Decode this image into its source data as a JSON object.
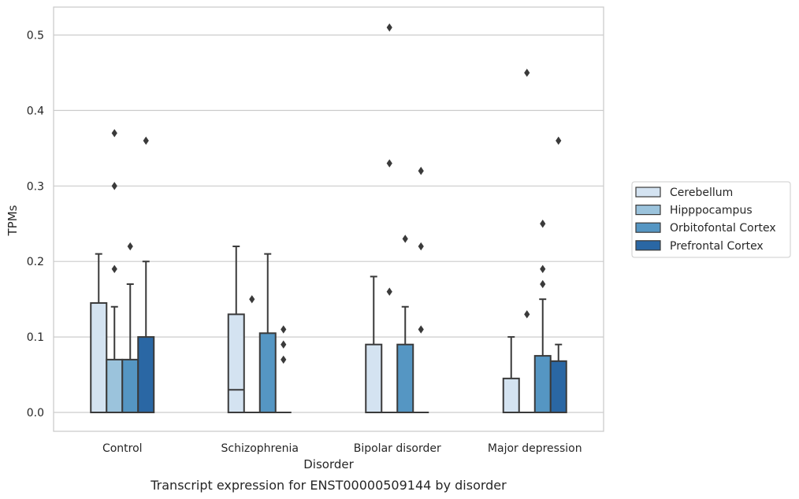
{
  "chart_data": {
    "type": "boxplot",
    "title": "",
    "caption": "Transcript expression for ENST00000509144 by disorder",
    "xlabel": "Disorder",
    "ylabel": "TPMs",
    "ylim": [
      -0.025,
      0.537
    ],
    "yticks": [
      "0.0",
      "0.1",
      "0.2",
      "0.3",
      "0.4",
      "0.5"
    ],
    "grid": true,
    "legend_placement": "right-center",
    "categories": [
      "Control",
      "Schizophrenia",
      "Bipolar disorder",
      "Major depression"
    ],
    "series": [
      {
        "name": "Cerebellum",
        "color": "#d4e3f1",
        "boxes": [
          {
            "q1": 0,
            "median": 0,
            "q3": 0.145,
            "whisker_low": 0,
            "whisker_high": 0.21,
            "outliers": []
          },
          {
            "q1": 0,
            "median": 0.03,
            "q3": 0.13,
            "whisker_low": 0,
            "whisker_high": 0.22,
            "outliers": []
          },
          {
            "q1": 0,
            "median": 0,
            "q3": 0.09,
            "whisker_low": 0,
            "whisker_high": 0.18,
            "outliers": []
          },
          {
            "q1": 0,
            "median": 0,
            "q3": 0.045,
            "whisker_low": 0,
            "whisker_high": 0.1,
            "outliers": []
          }
        ]
      },
      {
        "name": "Hipppocampus",
        "color": "#9bc3dc",
        "boxes": [
          {
            "q1": 0,
            "median": 0,
            "q3": 0.07,
            "whisker_low": 0,
            "whisker_high": 0.14,
            "outliers": [
              0.19,
              0.3,
              0.37
            ]
          },
          {
            "q1": 0,
            "median": 0,
            "q3": 0,
            "whisker_low": 0,
            "whisker_high": 0,
            "outliers": [
              0.15
            ]
          },
          {
            "q1": 0,
            "median": 0,
            "q3": 0,
            "whisker_low": 0,
            "whisker_high": 0,
            "outliers": [
              0.16,
              0.33,
              0.51
            ]
          },
          {
            "q1": 0,
            "median": 0,
            "q3": 0,
            "whisker_low": 0,
            "whisker_high": 0,
            "outliers": [
              0.13,
              0.45
            ]
          }
        ]
      },
      {
        "name": "Orbitofontal Cortex",
        "color": "#5596c3",
        "boxes": [
          {
            "q1": 0,
            "median": 0,
            "q3": 0.07,
            "whisker_low": 0,
            "whisker_high": 0.17,
            "outliers": [
              0.22
            ]
          },
          {
            "q1": 0,
            "median": 0,
            "q3": 0.105,
            "whisker_low": 0,
            "whisker_high": 0.21,
            "outliers": []
          },
          {
            "q1": 0,
            "median": 0,
            "q3": 0.09,
            "whisker_low": 0,
            "whisker_high": 0.14,
            "outliers": [
              0.23
            ]
          },
          {
            "q1": 0,
            "median": 0,
            "q3": 0.075,
            "whisker_low": 0,
            "whisker_high": 0.15,
            "outliers": [
              0.17,
              0.19,
              0.25
            ]
          }
        ]
      },
      {
        "name": "Prefrontal Cortex",
        "color": "#2a67a4",
        "boxes": [
          {
            "q1": 0,
            "median": 0,
            "q3": 0.1,
            "whisker_low": 0,
            "whisker_high": 0.2,
            "outliers": [
              0.36
            ]
          },
          {
            "q1": 0,
            "median": 0,
            "q3": 0,
            "whisker_low": 0,
            "whisker_high": 0,
            "outliers": [
              0.07,
              0.09,
              0.11
            ]
          },
          {
            "q1": 0,
            "median": 0,
            "q3": 0,
            "whisker_low": 0,
            "whisker_high": 0,
            "outliers": [
              0.11,
              0.22,
              0.32
            ]
          },
          {
            "q1": 0,
            "median": 0,
            "q3": 0.068,
            "whisker_low": 0,
            "whisker_high": 0.09,
            "outliers": [
              0.36
            ]
          }
        ]
      }
    ]
  }
}
